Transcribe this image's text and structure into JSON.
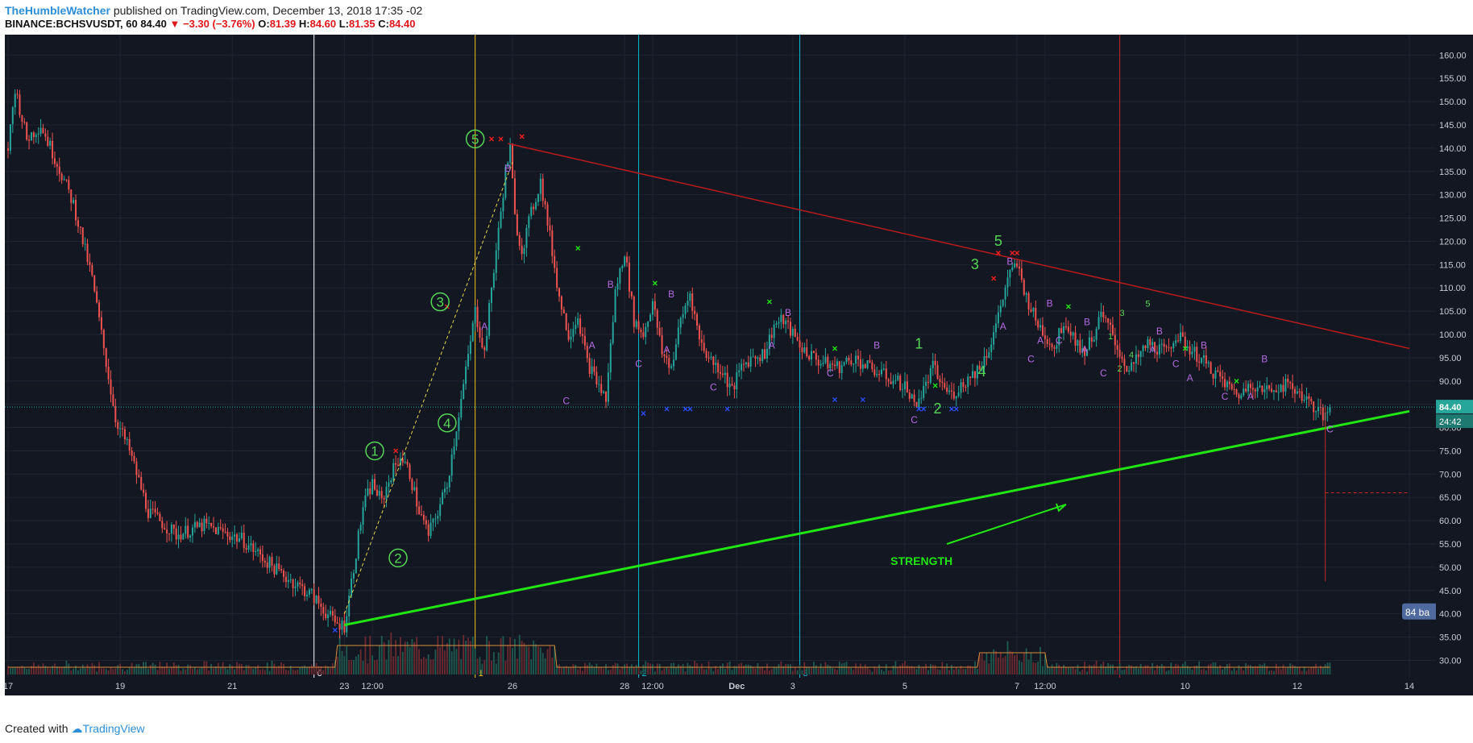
{
  "header": {
    "user": "TheHumbleWatcher",
    "published": "published on TradingView.com, December 13, 2018 17:35 -02",
    "symbol": "BINANCE:BCHSVUSDT, 60",
    "last": "84.40",
    "change": "−3.30 (−3.76%)",
    "o_label": "O:",
    "o": "81.39",
    "h_label": "H:",
    "h": "84.60",
    "l_label": "L:",
    "l": "81.35",
    "c_label": "C:",
    "c": "84.40"
  },
  "footer": {
    "created_with": "Created with",
    "brand": "TradingView"
  },
  "colors": {
    "background": "#131722",
    "up": "#26a69a",
    "down": "#ef5350",
    "support": "#22e614",
    "resistance": "#b71c1c",
    "wave": "#56d656",
    "abc": "#b36be0",
    "blue_x": "#2a4cff",
    "red_x": "#ff1f1f"
  },
  "chart_data": {
    "type": "candlestick",
    "title": "",
    "price_label_current": "84.40",
    "price_label_countdown": "24:42",
    "bars_label": "84 ba",
    "annotation_text": "STRENGTH",
    "ylim": [
      28,
      163
    ],
    "y_ticks": [
      "160.00",
      "155.00",
      "150.00",
      "145.00",
      "140.00",
      "135.00",
      "130.00",
      "125.00",
      "120.00",
      "115.00",
      "110.00",
      "105.00",
      "100.00",
      "95.00",
      "90.00",
      "85.00",
      "80.00",
      "75.00",
      "70.00",
      "65.00",
      "60.00",
      "55.00",
      "50.00",
      "45.00",
      "40.00",
      "35.00",
      "30.00"
    ],
    "x_ticks": [
      {
        "label": "17",
        "t": 0
      },
      {
        "label": "19",
        "t": 48
      },
      {
        "label": "21",
        "t": 96
      },
      {
        "label": "23",
        "t": 144
      },
      {
        "label": "12:00",
        "t": 156
      },
      {
        "label": "26",
        "t": 216
      },
      {
        "label": "28",
        "t": 264
      },
      {
        "label": "12:00",
        "t": 276
      },
      {
        "label": "Dec",
        "t": 312
      },
      {
        "label": "3",
        "t": 336
      },
      {
        "label": "5",
        "t": 384
      },
      {
        "label": "7",
        "t": 432
      },
      {
        "label": "12:00",
        "t": 444
      },
      {
        "label": "10",
        "t": 504
      },
      {
        "label": "12",
        "t": 552
      },
      {
        "label": "14",
        "t": 600
      }
    ],
    "price_path": [
      [
        0,
        140
      ],
      [
        3,
        153
      ],
      [
        8,
        142
      ],
      [
        14,
        145
      ],
      [
        20,
        138
      ],
      [
        28,
        128
      ],
      [
        36,
        112
      ],
      [
        46,
        82
      ],
      [
        52,
        75
      ],
      [
        60,
        62
      ],
      [
        72,
        57
      ],
      [
        84,
        59
      ],
      [
        100,
        56
      ],
      [
        116,
        49
      ],
      [
        130,
        44
      ],
      [
        140,
        38
      ],
      [
        144,
        37.5
      ],
      [
        148,
        50
      ],
      [
        152,
        63
      ],
      [
        156,
        68
      ],
      [
        160,
        64
      ],
      [
        164,
        70
      ],
      [
        168,
        74
      ],
      [
        172,
        70
      ],
      [
        176,
        62
      ],
      [
        180,
        57
      ],
      [
        184,
        62
      ],
      [
        188,
        68
      ],
      [
        192,
        80
      ],
      [
        196,
        92
      ],
      [
        200,
        105
      ],
      [
        204,
        96
      ],
      [
        207,
        110
      ],
      [
        210,
        122
      ],
      [
        213,
        135
      ],
      [
        215,
        140
      ],
      [
        217,
        125
      ],
      [
        220,
        118
      ],
      [
        224,
        126
      ],
      [
        228,
        133
      ],
      [
        232,
        121
      ],
      [
        236,
        108
      ],
      [
        240,
        100
      ],
      [
        244,
        104
      ],
      [
        248,
        94
      ],
      [
        252,
        90
      ],
      [
        256,
        86
      ],
      [
        260,
        109
      ],
      [
        264,
        118
      ],
      [
        268,
        103
      ],
      [
        272,
        100
      ],
      [
        276,
        107
      ],
      [
        280,
        96
      ],
      [
        284,
        93
      ],
      [
        288,
        103
      ],
      [
        292,
        109
      ],
      [
        296,
        99
      ],
      [
        300,
        95
      ],
      [
        306,
        92
      ],
      [
        310,
        88
      ],
      [
        314,
        93
      ],
      [
        318,
        95
      ],
      [
        324,
        96
      ],
      [
        328,
        102
      ],
      [
        332,
        103
      ],
      [
        336,
        100
      ],
      [
        340,
        97
      ],
      [
        348,
        94
      ],
      [
        356,
        93
      ],
      [
        362,
        95
      ],
      [
        368,
        93
      ],
      [
        376,
        91
      ],
      [
        384,
        89
      ],
      [
        388,
        85
      ],
      [
        392,
        88
      ],
      [
        396,
        93
      ],
      [
        400,
        89
      ],
      [
        404,
        87
      ],
      [
        408,
        89
      ],
      [
        412,
        91
      ],
      [
        416,
        93
      ],
      [
        420,
        97
      ],
      [
        424,
        104
      ],
      [
        428,
        112
      ],
      [
        432,
        115
      ],
      [
        436,
        108
      ],
      [
        440,
        103
      ],
      [
        444,
        100
      ],
      [
        448,
        97
      ],
      [
        452,
        103
      ],
      [
        456,
        100
      ],
      [
        460,
        96
      ],
      [
        464,
        99
      ],
      [
        468,
        104
      ],
      [
        472,
        101
      ],
      [
        476,
        96
      ],
      [
        480,
        92
      ],
      [
        484,
        95
      ],
      [
        488,
        98
      ],
      [
        492,
        97
      ],
      [
        496,
        96
      ],
      [
        500,
        100
      ],
      [
        504,
        98
      ],
      [
        508,
        96
      ],
      [
        512,
        94
      ],
      [
        516,
        92
      ],
      [
        520,
        90
      ],
      [
        524,
        88
      ],
      [
        528,
        87
      ],
      [
        532,
        90
      ],
      [
        536,
        88
      ],
      [
        540,
        88
      ],
      [
        544,
        89
      ],
      [
        548,
        89
      ],
      [
        552,
        88
      ],
      [
        556,
        86
      ],
      [
        560,
        84
      ],
      [
        564,
        82
      ],
      [
        566,
        84.4
      ]
    ],
    "support_line": [
      [
        144,
        37.6
      ],
      [
        600,
        83.5
      ]
    ],
    "resistance_line": [
      [
        214,
        141
      ],
      [
        600,
        97
      ]
    ],
    "impulse_line": [
      [
        144,
        40
      ],
      [
        216,
        137
      ]
    ],
    "wave_labels_circled": [
      {
        "label": "1",
        "t": 157,
        "p": 75
      },
      {
        "label": "2",
        "t": 167,
        "p": 52
      },
      {
        "label": "3",
        "t": 185,
        "p": 107
      },
      {
        "label": "4",
        "t": 188,
        "p": 81
      },
      {
        "label": "5",
        "t": 200,
        "p": 142
      }
    ],
    "wave_labels_large": [
      {
        "label": "1",
        "t": 390,
        "p": 97
      },
      {
        "label": "2",
        "t": 398,
        "p": 83
      },
      {
        "label": "3",
        "t": 414,
        "p": 114
      },
      {
        "label": "4",
        "t": 417,
        "p": 91
      },
      {
        "label": "5",
        "t": 424,
        "p": 119
      }
    ],
    "wave_labels_small": [
      {
        "label": "1",
        "t": 472,
        "p": 99
      },
      {
        "label": "2",
        "t": 476,
        "p": 92
      },
      {
        "label": "3",
        "t": 477,
        "p": 104
      },
      {
        "label": "4",
        "t": 481,
        "p": 95
      },
      {
        "label": "5",
        "t": 488,
        "p": 106
      }
    ],
    "abc_labels": [
      {
        "label": "B",
        "t": 214,
        "p": 135
      },
      {
        "label": "A",
        "t": 204,
        "p": 101
      },
      {
        "label": "C",
        "t": 239,
        "p": 85
      },
      {
        "label": "A",
        "t": 250,
        "p": 97
      },
      {
        "label": "B",
        "t": 258,
        "p": 110
      },
      {
        "label": "C",
        "t": 270,
        "p": 93
      },
      {
        "label": "B",
        "t": 284,
        "p": 108
      },
      {
        "label": "A",
        "t": 282,
        "p": 96
      },
      {
        "label": "C",
        "t": 302,
        "p": 88
      },
      {
        "label": "A",
        "t": 327,
        "p": 97
      },
      {
        "label": "B",
        "t": 334,
        "p": 104
      },
      {
        "label": "C",
        "t": 352,
        "p": 91
      },
      {
        "label": "B",
        "t": 372,
        "p": 97
      },
      {
        "label": "C",
        "t": 388,
        "p": 81
      },
      {
        "label": "B",
        "t": 429,
        "p": 115
      },
      {
        "label": "A",
        "t": 426,
        "p": 101
      },
      {
        "label": "C",
        "t": 438,
        "p": 94
      },
      {
        "label": "A",
        "t": 442,
        "p": 98
      },
      {
        "label": "B",
        "t": 446,
        "p": 106
      },
      {
        "label": "C",
        "t": 450,
        "p": 98
      },
      {
        "label": "B",
        "t": 462,
        "p": 102
      },
      {
        "label": "A",
        "t": 461,
        "p": 96
      },
      {
        "label": "C",
        "t": 469,
        "p": 91
      },
      {
        "label": "A",
        "t": 490,
        "p": 96
      },
      {
        "label": "B",
        "t": 493,
        "p": 100
      },
      {
        "label": "C",
        "t": 500,
        "p": 93
      },
      {
        "label": "A",
        "t": 506,
        "p": 90
      },
      {
        "label": "B",
        "t": 512,
        "p": 97
      },
      {
        "label": "C",
        "t": 521,
        "p": 86
      },
      {
        "label": "A",
        "t": 532,
        "p": 86
      },
      {
        "label": "B",
        "t": 538,
        "p": 94
      },
      {
        "label": "C",
        "t": 566,
        "p": 79
      }
    ],
    "green_x": [
      [
        244,
        118.5
      ],
      [
        277,
        111
      ],
      [
        326,
        107
      ],
      [
        354,
        97
      ],
      [
        397,
        89
      ],
      [
        454,
        106
      ],
      [
        504,
        97
      ],
      [
        526,
        90
      ]
    ],
    "red_x": [
      [
        207,
        142
      ],
      [
        211,
        142
      ],
      [
        220,
        142.5
      ],
      [
        188,
        106
      ],
      [
        166,
        75
      ],
      [
        422,
        112
      ],
      [
        424,
        117.5
      ],
      [
        430,
        117.5
      ],
      [
        432,
        117.5
      ]
    ],
    "blue_x": [
      [
        140,
        36.5
      ],
      [
        272,
        83
      ],
      [
        282,
        84
      ],
      [
        290,
        84
      ],
      [
        292,
        84
      ],
      [
        308,
        84
      ],
      [
        354,
        86
      ],
      [
        366,
        86
      ],
      [
        390,
        84
      ],
      [
        392,
        84
      ],
      [
        404,
        84
      ],
      [
        406,
        84
      ]
    ],
    "vlines": [
      {
        "t": 131,
        "color": "#ffffff",
        "label": "0"
      },
      {
        "t": 200,
        "color": "#f2c21b",
        "label": "1"
      },
      {
        "t": 270,
        "color": "#00bcd4",
        "label": "2"
      },
      {
        "t": 339,
        "color": "#00bcd4",
        "label": "3"
      },
      {
        "t": 476,
        "color": "#c62828",
        "label": ""
      }
    ],
    "strength_arrow": [
      [
        402,
        55
      ],
      [
        453,
        63.5
      ]
    ],
    "target_dash_price": 66,
    "target_drop": [
      564,
      47
    ]
  }
}
